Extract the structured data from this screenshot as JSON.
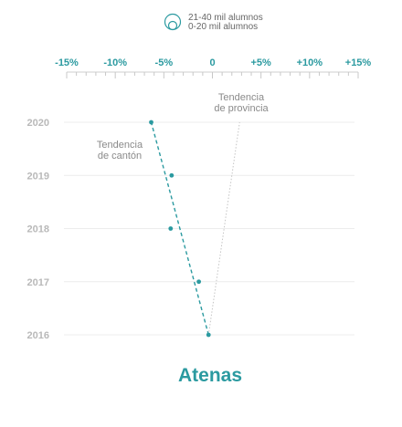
{
  "chart_data": {
    "type": "scatter",
    "title": "Atenas",
    "legend": {
      "entries": [
        "21-40 mil alumnos",
        "0-20 mil alumnos"
      ],
      "placement": "top-center"
    },
    "x_axis": {
      "range": [
        -15,
        15
      ],
      "ticks": [
        -15,
        -10,
        -5,
        0,
        5,
        10,
        15
      ],
      "tick_labels": [
        "-15%",
        "-10%",
        "-5%",
        "0",
        "+5%",
        "+10%",
        "+15%"
      ],
      "unit": "%"
    },
    "y_axis": {
      "categories": [
        "2020",
        "2019",
        "2018",
        "2017",
        "2016"
      ]
    },
    "series": [
      {
        "name": "Tendencia de cantón",
        "style": "dashed",
        "color": "#2b9aa0",
        "points": [
          {
            "year": "2016",
            "x": -0.4
          },
          {
            "year": "2017",
            "x": -1.4
          },
          {
            "year": "2018",
            "x": -4.3
          },
          {
            "year": "2019",
            "x": -4.2
          },
          {
            "year": "2020",
            "x": -6.3
          }
        ],
        "trend": [
          {
            "year": "2016",
            "x": -0.4
          },
          {
            "year": "2020",
            "x": -6.3
          }
        ]
      },
      {
        "name": "Tendencia de provincia",
        "style": "dotted",
        "color": "#c4c4c4",
        "trend": [
          {
            "year": "2016",
            "x": -0.4
          },
          {
            "year": "2020",
            "x": 2.8
          }
        ]
      }
    ],
    "annotations": [
      {
        "lines": [
          "Tendencia",
          "de cantón"
        ],
        "series": "Tendencia de cantón"
      },
      {
        "lines": [
          "Tendencia",
          "de provincia"
        ],
        "series": "Tendencia de provincia"
      }
    ],
    "grid": "horizontal",
    "colors": {
      "accent": "#2b9aa0",
      "axis_labels": "#2b9aa0",
      "year_labels": "#b9b9b9",
      "gridlines": "#ececec",
      "province": "#c4c4c4",
      "annotation_text": "#8a8a8a"
    }
  }
}
